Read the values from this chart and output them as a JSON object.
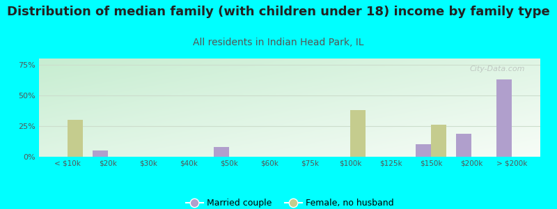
{
  "title": "Distribution of median family (with children under 18) income by family type",
  "subtitle": "All residents in Indian Head Park, IL",
  "categories": [
    "< $10k",
    "$20k",
    "$30k",
    "$40k",
    "$50k",
    "$60k",
    "$75k",
    "$100k",
    "$125k",
    "$150k",
    "$200k",
    "> $200k"
  ],
  "married_couple": [
    0,
    5,
    0,
    0,
    8,
    0,
    0,
    0,
    0,
    10,
    19,
    63
  ],
  "female_no_husband": [
    30,
    0,
    0,
    0,
    0,
    0,
    0,
    38,
    0,
    26,
    0,
    0
  ],
  "married_color": "#b09fcc",
  "female_color": "#c5cc8e",
  "bg_color": "#00ffff",
  "plot_bg_topleft": [
    0.78,
    0.93,
    0.82
  ],
  "plot_bg_bottomright": [
    0.97,
    0.99,
    0.97
  ],
  "title_fontsize": 13,
  "subtitle_fontsize": 10,
  "subtitle_color": "#555555",
  "ylabel_vals": [
    "0%",
    "25%",
    "50%",
    "75%"
  ],
  "yticks": [
    0,
    25,
    50,
    75
  ],
  "ylim": [
    0,
    80
  ],
  "bar_width": 0.38,
  "grid_color": "#ccddcc",
  "tick_color": "#555555"
}
